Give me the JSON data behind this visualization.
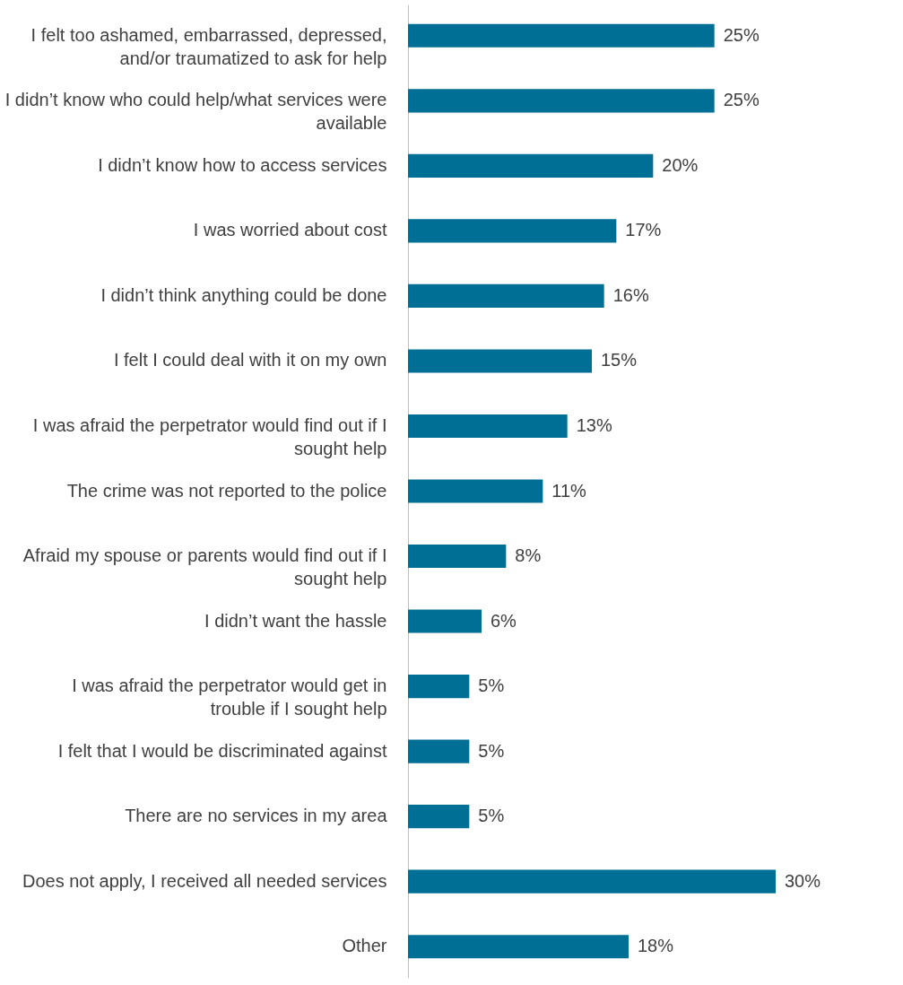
{
  "chart_data": {
    "type": "bar",
    "orientation": "horizontal",
    "categories": [
      "I felt too ashamed, embarrassed, depressed, and/or traumatized to ask for help",
      "I didn’t know who could help/what services were available",
      "I didn’t know how to access services",
      "I was worried about cost",
      "I didn’t think anything could be done",
      "I felt I could deal with it on my own",
      "I was afraid the perpetrator would find out if I sought help",
      "The crime was not reported to the police",
      "Afraid my spouse or parents would find out if I sought help",
      "I didn’t want the hassle",
      "I was afraid the perpetrator would get in trouble if I sought help",
      "I felt that I would be discriminated against",
      "There are no services in my area",
      "Does not apply, I received all needed services",
      "Other"
    ],
    "values": [
      25,
      25,
      20,
      17,
      16,
      15,
      13,
      11,
      8,
      6,
      5,
      5,
      5,
      30,
      18
    ],
    "value_labels": [
      "25%",
      "25%",
      "20%",
      "17%",
      "16%",
      "15%",
      "13%",
      "11%",
      "8%",
      "6%",
      "5%",
      "5%",
      "5%",
      "30%",
      "18%"
    ],
    "color": "#006f96"
  }
}
